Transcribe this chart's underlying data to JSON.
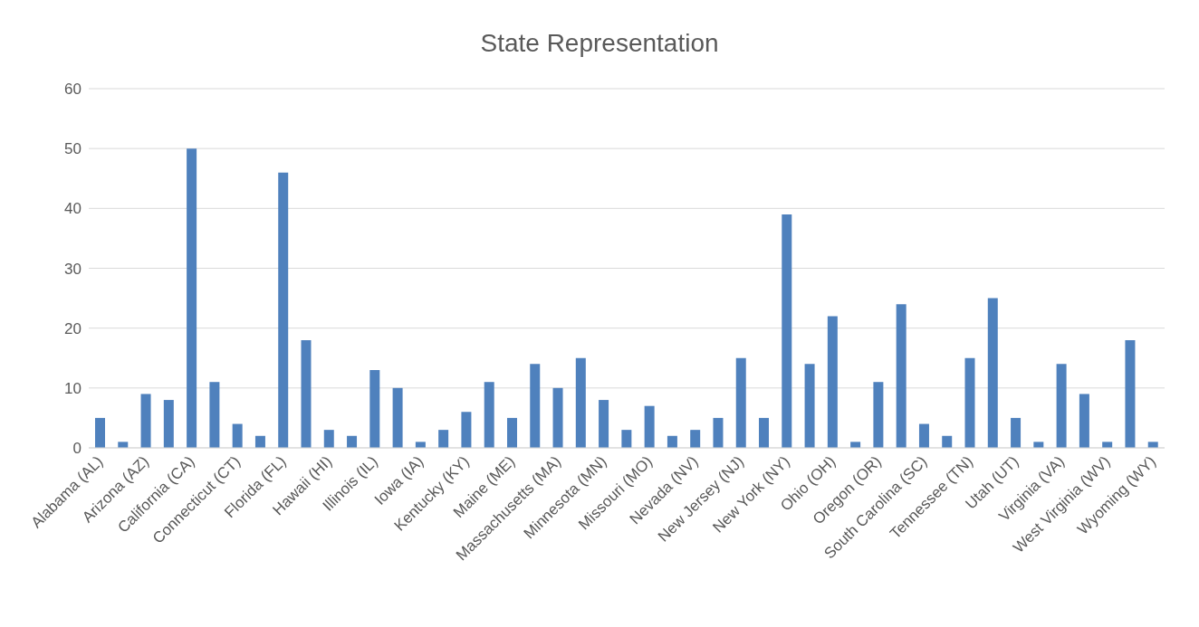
{
  "chart_data": {
    "type": "bar",
    "title": "State Representation",
    "categories": [
      "Alabama (AL)",
      null,
      "Arizona (AZ)",
      null,
      "California (CA)",
      null,
      "Connecticut (CT)",
      null,
      "Florida (FL)",
      null,
      "Hawaii (HI)",
      null,
      "Illinois (IL)",
      null,
      "Iowa (IA)",
      null,
      "Kentucky (KY)",
      null,
      "Maine (ME)",
      null,
      "Massachusetts (MA)",
      null,
      "Minnesota (MN)",
      null,
      "Missouri (MO)",
      null,
      "Nevada (NV)",
      null,
      "New Jersey (NJ)",
      null,
      "New York (NY)",
      null,
      "Ohio (OH)",
      null,
      "Oregon (OR)",
      null,
      "South Carolina (SC)",
      null,
      "Tennessee (TN)",
      null,
      "Utah (UT)",
      null,
      "Virginia (VA)",
      null,
      "West Virginia (WV)",
      null,
      "Wyoming (WY)"
    ],
    "values": [
      5,
      1,
      9,
      8,
      50,
      11,
      4,
      2,
      46,
      18,
      3,
      2,
      13,
      10,
      1,
      3,
      6,
      11,
      5,
      14,
      10,
      15,
      8,
      3,
      7,
      2,
      3,
      5,
      15,
      5,
      39,
      14,
      22,
      1,
      11,
      24,
      4,
      2,
      15,
      25,
      5,
      1,
      14,
      9,
      1,
      18,
      1
    ],
    "color": "#4f81bd",
    "ylim": [
      0,
      60
    ],
    "yticks": [
      0,
      10,
      20,
      30,
      40,
      50,
      60
    ],
    "grid": "y"
  }
}
